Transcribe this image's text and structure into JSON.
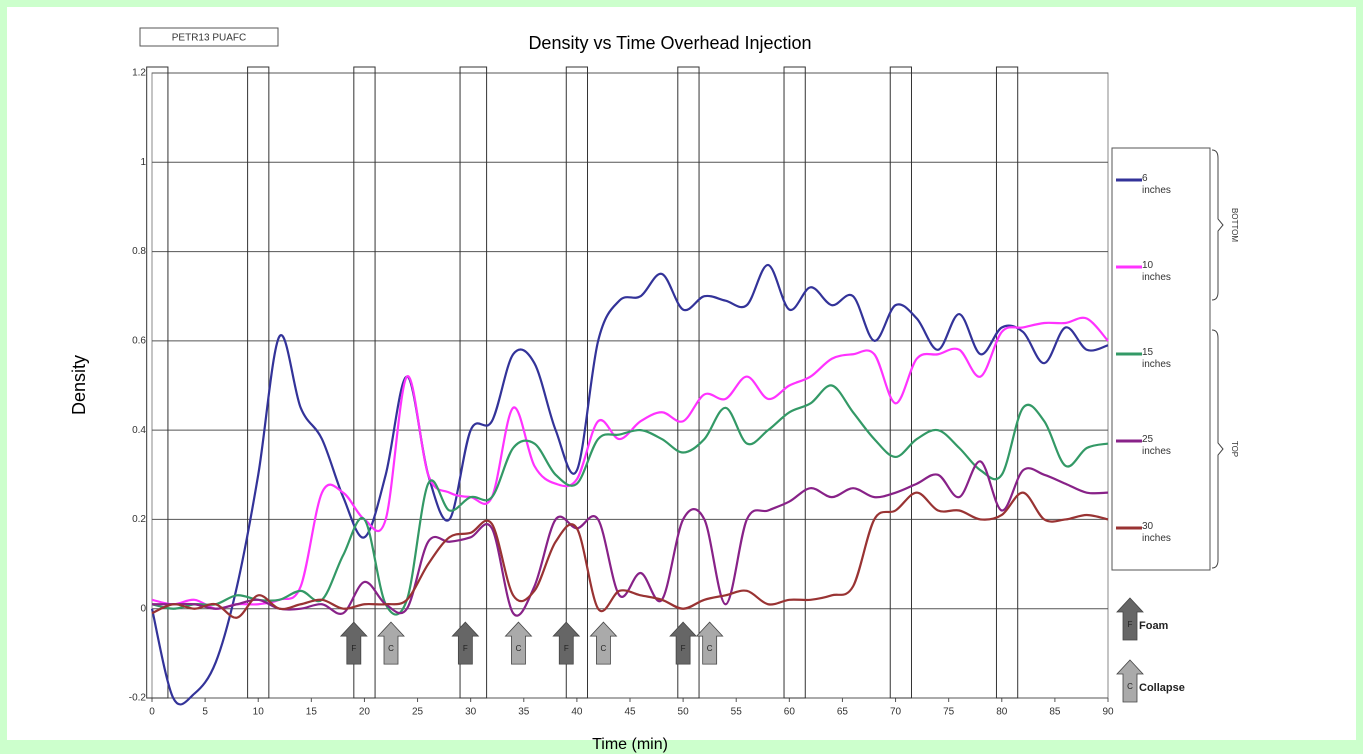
{
  "chart_data": {
    "type": "line",
    "title": "Density vs Time Overhead Injection",
    "tag": "PETR13 PUAFC",
    "x_label": "Time (min)",
    "y_label": "Density",
    "x": [
      0,
      2,
      4,
      6,
      8,
      10,
      12,
      14,
      16,
      18,
      20,
      22,
      24,
      26,
      28,
      30,
      32,
      34,
      36,
      38,
      40,
      42,
      44,
      46,
      48,
      50,
      52,
      54,
      56,
      58,
      60,
      62,
      64,
      66,
      68,
      70,
      72,
      74,
      76,
      78,
      80,
      82,
      84,
      86,
      88,
      90
    ],
    "series": [
      {
        "name": "6 inches",
        "color": "#333399",
        "values": [
          0,
          -0.2,
          -0.19,
          -0.12,
          0.05,
          0.3,
          0.61,
          0.45,
          0.38,
          0.25,
          0.16,
          0.3,
          0.52,
          0.3,
          0.2,
          0.4,
          0.42,
          0.57,
          0.55,
          0.4,
          0.31,
          0.6,
          0.69,
          0.7,
          0.75,
          0.67,
          0.7,
          0.69,
          0.68,
          0.77,
          0.67,
          0.72,
          0.68,
          0.7,
          0.6,
          0.68,
          0.65,
          0.58,
          0.66,
          0.57,
          0.63,
          0.62,
          0.55,
          0.63,
          0.58,
          0.59
        ]
      },
      {
        "name": "10 inches",
        "color": "#ff33ff",
        "values": [
          0.02,
          0.01,
          0.02,
          0,
          0.01,
          0.01,
          0.02,
          0.05,
          0.26,
          0.26,
          0.2,
          0.2,
          0.52,
          0.3,
          0.26,
          0.25,
          0.25,
          0.45,
          0.32,
          0.28,
          0.29,
          0.42,
          0.38,
          0.42,
          0.44,
          0.42,
          0.48,
          0.47,
          0.52,
          0.47,
          0.5,
          0.52,
          0.56,
          0.57,
          0.57,
          0.46,
          0.56,
          0.57,
          0.58,
          0.52,
          0.62,
          0.63,
          0.64,
          0.64,
          0.65,
          0.6
        ]
      },
      {
        "name": "15 inches",
        "color": "#339966",
        "values": [
          0.01,
          0,
          0.01,
          0.01,
          0.03,
          0.02,
          0.02,
          0.04,
          0.02,
          0.12,
          0.2,
          0.01,
          0.02,
          0.28,
          0.22,
          0.25,
          0.25,
          0.36,
          0.37,
          0.3,
          0.28,
          0.38,
          0.39,
          0.4,
          0.38,
          0.35,
          0.38,
          0.45,
          0.37,
          0.4,
          0.44,
          0.46,
          0.5,
          0.44,
          0.38,
          0.34,
          0.38,
          0.4,
          0.36,
          0.31,
          0.3,
          0.45,
          0.42,
          0.32,
          0.36,
          0.37
        ]
      },
      {
        "name": "25 inches",
        "color": "#882288",
        "values": [
          0.01,
          0.01,
          0.01,
          0,
          0.01,
          0.02,
          0,
          0,
          0.01,
          -0.01,
          0.06,
          0.01,
          0,
          0.15,
          0.15,
          0.16,
          0.18,
          -0.01,
          0.05,
          0.2,
          0.18,
          0.2,
          0.03,
          0.08,
          0.02,
          0.2,
          0.2,
          0.01,
          0.2,
          0.22,
          0.24,
          0.27,
          0.25,
          0.27,
          0.25,
          0.26,
          0.28,
          0.3,
          0.25,
          0.33,
          0.22,
          0.31,
          0.3,
          0.28,
          0.26,
          0.26
        ]
      },
      {
        "name": "30 inches",
        "color": "#993333",
        "values": [
          -0.01,
          0.01,
          0,
          0.01,
          -0.02,
          0.03,
          0,
          0.01,
          0.02,
          0,
          0.01,
          0.01,
          0.02,
          0.1,
          0.16,
          0.17,
          0.19,
          0.03,
          0.04,
          0.15,
          0.18,
          0,
          0.04,
          0.03,
          0.02,
          0,
          0.02,
          0.03,
          0.04,
          0.01,
          0.02,
          0.02,
          0.03,
          0.05,
          0.2,
          0.22,
          0.26,
          0.22,
          0.22,
          0.2,
          0.21,
          0.26,
          0.2,
          0.2,
          0.21,
          0.2
        ]
      }
    ],
    "bands": [
      [
        -0.5,
        1.5
      ],
      [
        9,
        11
      ],
      [
        19,
        21
      ],
      [
        29,
        31.5
      ],
      [
        39,
        41
      ],
      [
        49.5,
        51.5
      ],
      [
        59.5,
        61.5
      ],
      [
        69.5,
        71.5
      ],
      [
        79.5,
        81.5
      ]
    ],
    "annotations": [
      {
        "x": 19,
        "label": "F"
      },
      {
        "x": 22.5,
        "label": "C"
      },
      {
        "x": 29.5,
        "label": "F"
      },
      {
        "x": 34.5,
        "label": "C"
      },
      {
        "x": 39,
        "label": "F"
      },
      {
        "x": 42.5,
        "label": "C"
      },
      {
        "x": 50,
        "label": "F"
      },
      {
        "x": 52.5,
        "label": "C"
      }
    ],
    "key": [
      {
        "label": "F",
        "text": "Foam"
      },
      {
        "label": "C",
        "text": "Collapse"
      }
    ],
    "groups": [
      "BOTTOM",
      "TOP"
    ],
    "xlim": [
      0,
      90
    ],
    "ylim": [
      -0.2,
      1.2
    ],
    "xticks": [
      0,
      5,
      10,
      15,
      20,
      25,
      30,
      35,
      40,
      45,
      50,
      55,
      60,
      65,
      70,
      75,
      80,
      85,
      90
    ],
    "yticks": [
      -0.2,
      0,
      0.2,
      0.4,
      0.6,
      0.8,
      1,
      1.2
    ],
    "grid": true,
    "legend": "right"
  }
}
